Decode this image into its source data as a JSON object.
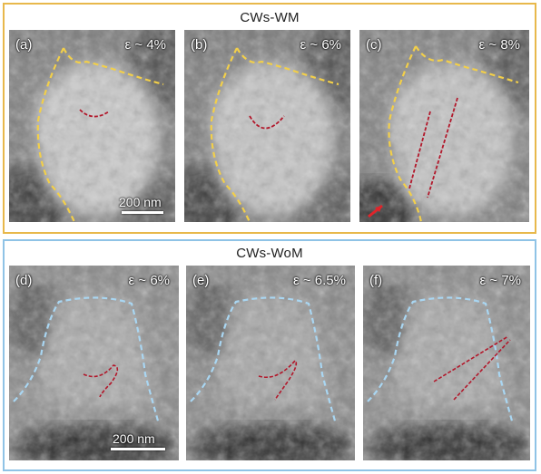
{
  "groups": {
    "wm": {
      "title": "CWs-WM",
      "frame_color": "#e8b84b",
      "boundary_color": "#f2cf4a",
      "panels": [
        {
          "label": "(a)",
          "strain": "ε ~ 4%"
        },
        {
          "label": "(b)",
          "strain": "ε ~ 6%"
        },
        {
          "label": "(c)",
          "strain": "ε ~ 8%"
        }
      ]
    },
    "wom": {
      "title": "CWs-WoM",
      "frame_color": "#8fc3e6",
      "boundary_color": "#a9d6f2",
      "panels": [
        {
          "label": "(d)",
          "strain": "ε ~ 6%"
        },
        {
          "label": "(e)",
          "strain": "ε ~ 6.5%"
        },
        {
          "label": "(f)",
          "strain": "ε ~ 7%"
        }
      ]
    }
  },
  "scale_bars": {
    "top": "200 nm",
    "bottom": "200 nm"
  },
  "dislocation_color": "#b2182b",
  "arrow_color": "#e0242a"
}
